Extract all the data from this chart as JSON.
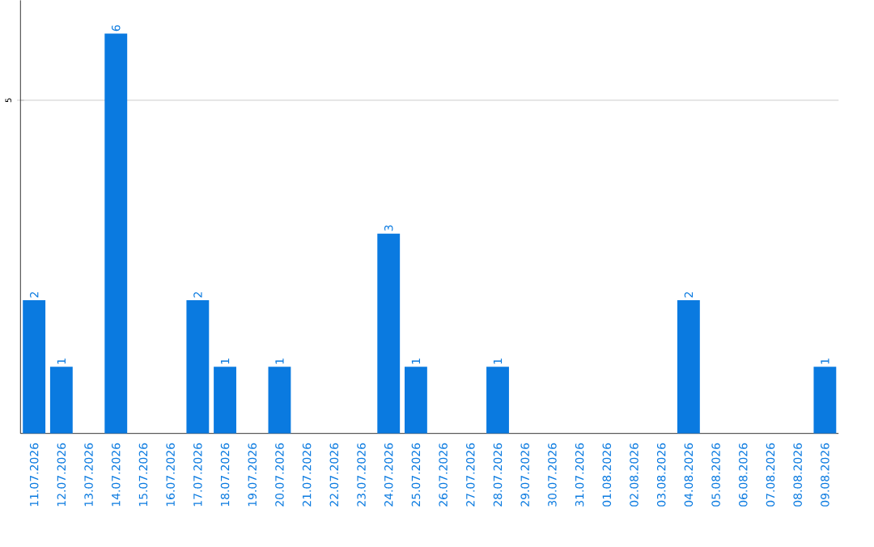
{
  "chart_data": {
    "type": "bar",
    "categories": [
      "11.07.2026",
      "12.07.2026",
      "13.07.2026",
      "14.07.2026",
      "15.07.2026",
      "16.07.2026",
      "17.07.2026",
      "18.07.2026",
      "19.07.2026",
      "20.07.2026",
      "21.07.2026",
      "22.07.2026",
      "23.07.2026",
      "24.07.2026",
      "25.07.2026",
      "26.07.2026",
      "27.07.2026",
      "28.07.2026",
      "29.07.2026",
      "30.07.2026",
      "31.07.2026",
      "01.08.2026",
      "02.08.2026",
      "03.08.2026",
      "04.08.2026",
      "05.08.2026",
      "06.08.2026",
      "07.08.2026",
      "08.08.2026",
      "09.08.2026"
    ],
    "values": [
      2,
      1,
      0,
      6,
      0,
      0,
      2,
      1,
      0,
      1,
      0,
      0,
      0,
      3,
      1,
      0,
      0,
      1,
      0,
      0,
      0,
      0,
      0,
      0,
      2,
      0,
      0,
      0,
      0,
      1
    ],
    "value_labels": [
      "2",
      "1",
      null,
      "6",
      null,
      null,
      "2",
      "1",
      null,
      "1",
      null,
      null,
      null,
      "3",
      "1",
      null,
      null,
      "1",
      null,
      null,
      null,
      null,
      null,
      null,
      "2",
      null,
      null,
      null,
      null,
      "1"
    ],
    "color": "#0a7ae0",
    "ylim": [
      0,
      6.5
    ],
    "yticks": [
      5
    ],
    "grid": "y"
  }
}
